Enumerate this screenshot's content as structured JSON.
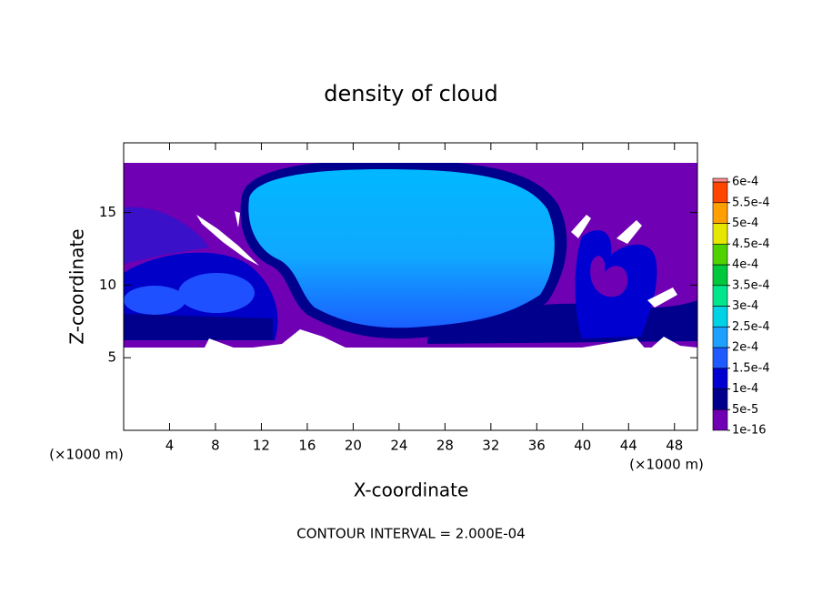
{
  "chart_data": {
    "type": "contour",
    "title": "density of cloud",
    "x_label": "X-coordinate",
    "y_label": "Z-coordinate",
    "unit_labels": [
      "(×1000 m)",
      "(×1000 m)"
    ],
    "footnote": "CONTOUR INTERVAL = 2.000E-04",
    "xlim": [
      0,
      50
    ],
    "xticks": [
      4,
      8,
      12,
      16,
      20,
      24,
      28,
      32,
      36,
      40,
      44,
      48
    ],
    "ylim": [
      0,
      19.8
    ],
    "yticks": [
      5,
      10,
      15
    ],
    "levels": [
      {
        "value": 1e-16,
        "label": "1e-16"
      },
      {
        "value": 5e-05,
        "label": "5e-5"
      },
      {
        "value": 0.0001,
        "label": "1e-4"
      },
      {
        "value": 0.00015,
        "label": "1.5e-4"
      },
      {
        "value": 0.0002,
        "label": "2e-4"
      },
      {
        "value": 0.00025,
        "label": "2.5e-4"
      },
      {
        "value": 0.0003,
        "label": "3e-4"
      },
      {
        "value": 0.00035,
        "label": "3.5e-4"
      },
      {
        "value": 0.0004,
        "label": "4e-4"
      },
      {
        "value": 0.00045,
        "label": "4.5e-4"
      },
      {
        "value": 0.0005,
        "label": "5e-4"
      },
      {
        "value": 0.00055,
        "label": "5.5e-4"
      },
      {
        "value": 0.0006,
        "label": "6e-4"
      }
    ],
    "colors": [
      "#7000b4",
      "#00008c",
      "#0000d0",
      "#1e5aff",
      "#1ea0ff",
      "#00d2e6",
      "#00e68c",
      "#00c83c",
      "#50d200",
      "#e6e600",
      "#ffa000",
      "#ff4600",
      "#ff8c8c"
    ]
  }
}
